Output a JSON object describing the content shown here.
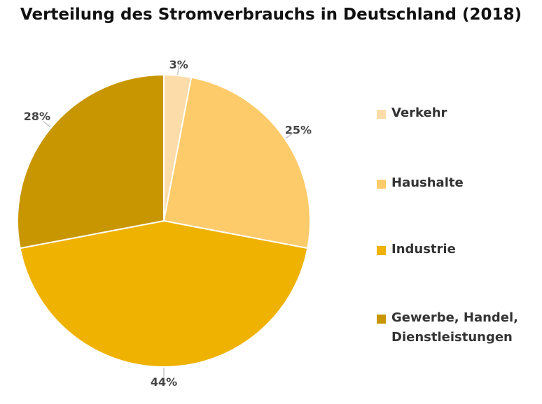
{
  "chart_data": {
    "type": "pie",
    "title": "Verteilung des Stromverbrauchs in Deutschland (2018)",
    "categories": [
      "Verkehr",
      "Haushalte",
      "Industrie",
      "Gewerbe, Handel, Dienstleistungen"
    ],
    "values": [
      3,
      25,
      44,
      28
    ],
    "value_labels": [
      "3%",
      "25%",
      "44%",
      "28%"
    ],
    "colors": [
      "#fcdca8",
      "#fecb6b",
      "#efb200",
      "#c89600"
    ],
    "start": "top, clockwise",
    "legend_position": "right"
  }
}
